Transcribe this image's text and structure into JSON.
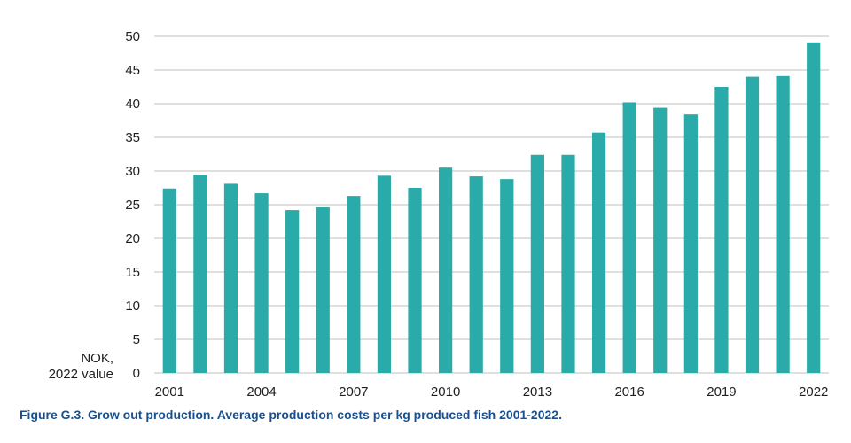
{
  "chart_data": {
    "type": "bar",
    "categories": [
      "2001",
      "2002",
      "2003",
      "2004",
      "2005",
      "2006",
      "2007",
      "2008",
      "2009",
      "2010",
      "2011",
      "2012",
      "2013",
      "2014",
      "2015",
      "2016",
      "2017",
      "2018",
      "2019",
      "2020",
      "2021",
      "2022"
    ],
    "values": [
      27.4,
      29.4,
      28.1,
      26.7,
      24.2,
      24.6,
      26.3,
      29.3,
      27.5,
      30.5,
      29.2,
      28.8,
      32.4,
      32.4,
      35.7,
      40.2,
      39.4,
      38.4,
      42.5,
      44.0,
      44.1,
      49.1
    ],
    "x_tick_labels": [
      "2001",
      "2004",
      "2007",
      "2010",
      "2013",
      "2016",
      "2019",
      "2022"
    ],
    "ylim": [
      0,
      50
    ],
    "y_ticks": [
      0,
      5,
      10,
      15,
      20,
      25,
      30,
      35,
      40,
      45,
      50
    ],
    "ylabel": [
      "NOK,",
      "2022 value"
    ],
    "xlabel": "",
    "grid": true,
    "bar_color": "#2aaaa8",
    "grid_color": "#bfbfbf"
  },
  "caption": "Figure G.3. Grow out production. Average production costs per kg produced fish 2001-2022."
}
